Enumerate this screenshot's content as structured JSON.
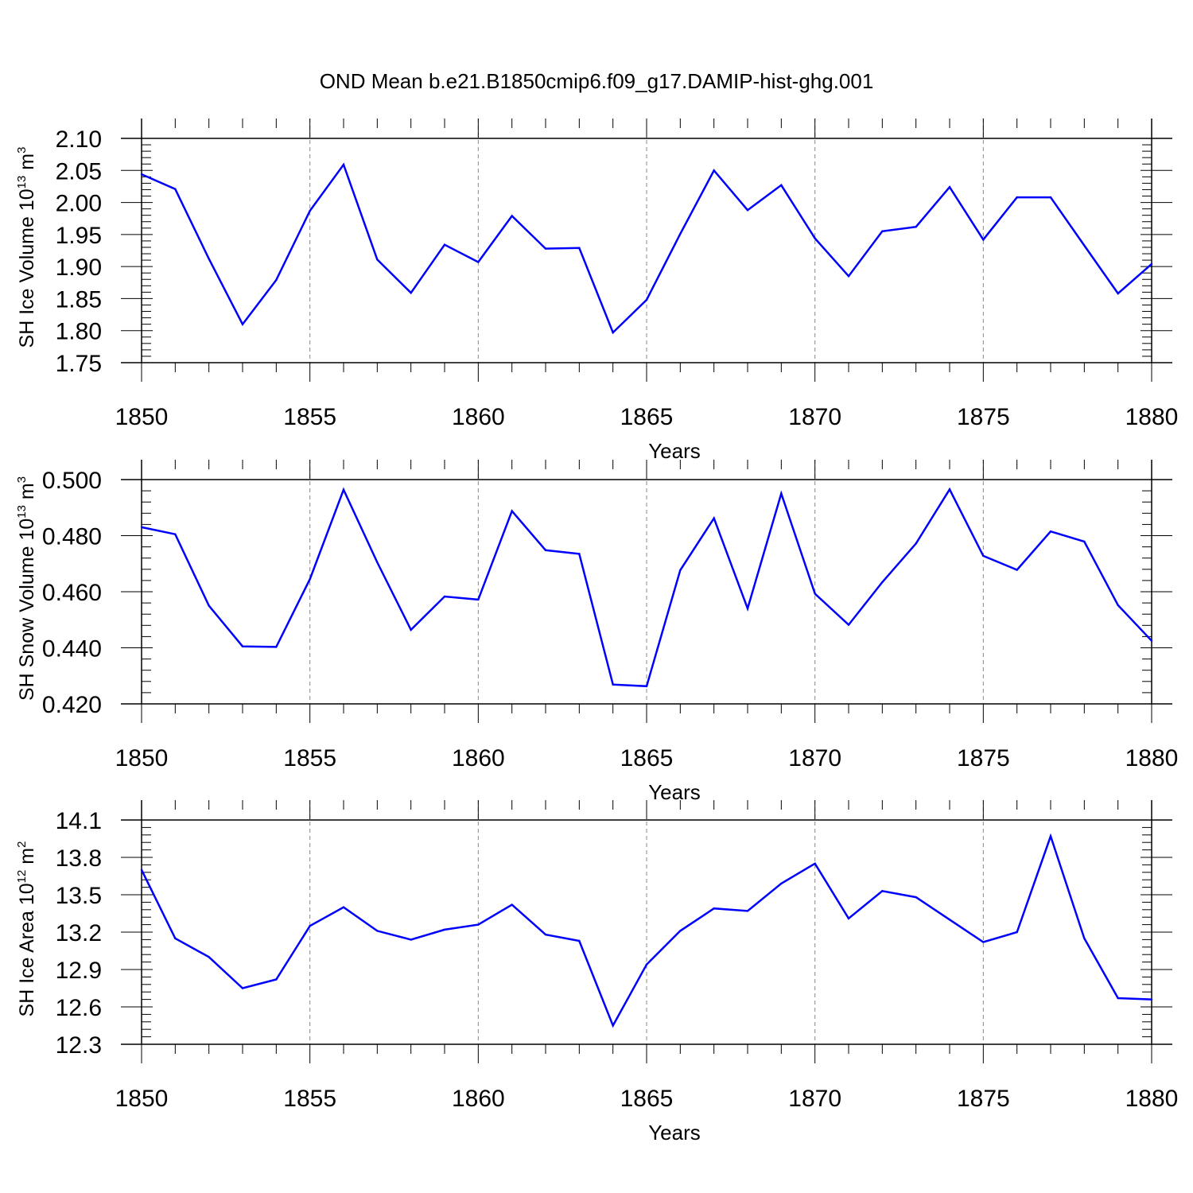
{
  "title": "OND Mean b.e21.B1850cmip6.f09_g17.DAMIP-hist-ghg.001",
  "chart_data": [
    {
      "type": "line",
      "title": "OND Mean b.e21.B1850cmip6.f09_g17.DAMIP-hist-ghg.001",
      "xlabel": "Years",
      "ylabel": {
        "main": "SH Ice Volume 10",
        "exp": "13",
        "unit": " m",
        "unit_exp": "3"
      },
      "xlim": [
        1850,
        1880
      ],
      "ylim": [
        1.75,
        2.1
      ],
      "xticks": [
        "1850",
        "1855",
        "1860",
        "1865",
        "1870",
        "1875",
        "1880"
      ],
      "yticks": [
        "1.75",
        "1.80",
        "1.85",
        "1.90",
        "1.95",
        "2.00",
        "2.05",
        "2.10"
      ],
      "grid": "dashed vertical at major x ticks",
      "line_color": "#0000ff",
      "x": [
        1850,
        1851,
        1852,
        1853,
        1854,
        1855,
        1856,
        1857,
        1858,
        1859,
        1860,
        1861,
        1862,
        1863,
        1864,
        1865,
        1866,
        1867,
        1868,
        1869,
        1870,
        1871,
        1872,
        1873,
        1874,
        1875,
        1876,
        1877,
        1878,
        1879,
        1880
      ],
      "values": [
        2.044,
        2.021,
        1.912,
        1.81,
        1.879,
        1.987,
        2.059,
        1.911,
        1.859,
        1.934,
        1.907,
        1.979,
        1.928,
        1.929,
        1.797,
        1.848,
        1.951,
        2.05,
        1.988,
        2.027,
        1.944,
        1.885,
        1.955,
        1.962,
        2.024,
        1.942,
        2.008,
        2.008,
        1.933,
        1.858,
        1.904
      ]
    },
    {
      "type": "line",
      "xlabel": "Years",
      "ylabel": {
        "main": "SH Snow Volume 10",
        "exp": "13",
        "unit": " m",
        "unit_exp": "3"
      },
      "xlim": [
        1850,
        1880
      ],
      "ylim": [
        0.42,
        0.5
      ],
      "xticks": [
        "1850",
        "1855",
        "1860",
        "1865",
        "1870",
        "1875",
        "1880"
      ],
      "yticks": [
        "0.420",
        "0.440",
        "0.460",
        "0.480",
        "0.500"
      ],
      "grid": "dashed vertical at major x ticks",
      "line_color": "#0000ff",
      "x": [
        1850,
        1851,
        1852,
        1853,
        1854,
        1855,
        1856,
        1857,
        1858,
        1859,
        1860,
        1861,
        1862,
        1863,
        1864,
        1865,
        1866,
        1867,
        1868,
        1869,
        1870,
        1871,
        1872,
        1873,
        1874,
        1875,
        1876,
        1877,
        1878,
        1879,
        1880
      ],
      "values": [
        0.483,
        0.4805,
        0.455,
        0.4405,
        0.4403,
        0.4645,
        0.4964,
        0.4705,
        0.4464,
        0.4583,
        0.4572,
        0.4888,
        0.4748,
        0.4735,
        0.4269,
        0.4263,
        0.4677,
        0.4862,
        0.454,
        0.495,
        0.4593,
        0.4482,
        0.4634,
        0.4772,
        0.4965,
        0.4728,
        0.4678,
        0.4815,
        0.4779,
        0.4552,
        0.4425
      ]
    },
    {
      "type": "line",
      "xlabel": "Years",
      "ylabel": {
        "main": "SH Ice Area 10",
        "exp": "12",
        "unit": " m",
        "unit_exp": "2"
      },
      "xlim": [
        1850,
        1880
      ],
      "ylim": [
        12.3,
        14.1
      ],
      "xticks": [
        "1850",
        "1855",
        "1860",
        "1865",
        "1870",
        "1875",
        "1880"
      ],
      "yticks": [
        "12.3",
        "12.6",
        "12.9",
        "13.2",
        "13.5",
        "13.8",
        "14.1"
      ],
      "grid": "dashed vertical at major x ticks",
      "line_color": "#0000ff",
      "x": [
        1850,
        1851,
        1852,
        1853,
        1854,
        1855,
        1856,
        1857,
        1858,
        1859,
        1860,
        1861,
        1862,
        1863,
        1864,
        1865,
        1866,
        1867,
        1868,
        1869,
        1870,
        1871,
        1872,
        1873,
        1874,
        1875,
        1876,
        1877,
        1878,
        1879,
        1880
      ],
      "values": [
        13.7,
        13.15,
        13.0,
        12.75,
        12.82,
        13.25,
        13.4,
        13.21,
        13.14,
        13.22,
        13.26,
        13.42,
        13.18,
        13.13,
        12.45,
        12.94,
        13.21,
        13.39,
        13.37,
        13.59,
        13.75,
        13.31,
        13.53,
        13.48,
        13.3,
        13.12,
        13.2,
        13.97,
        13.15,
        12.67,
        12.66
      ]
    }
  ]
}
